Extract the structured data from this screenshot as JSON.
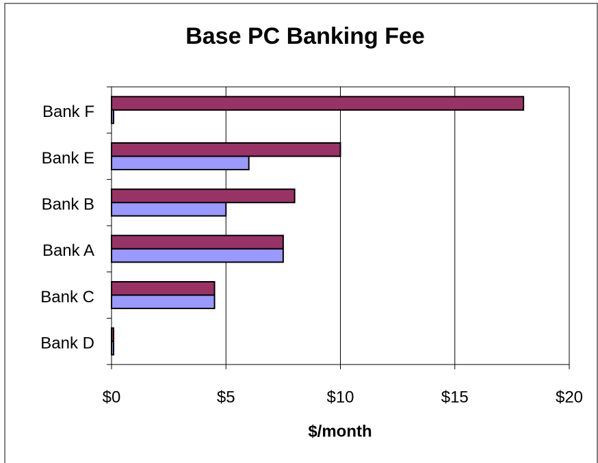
{
  "chart_data": {
    "type": "hbar",
    "title": "Base PC Banking Fee",
    "x_label": "$/month",
    "categories": [
      "Bank F",
      "Bank E",
      "Bank B",
      "Bank A",
      "Bank C",
      "Bank D"
    ],
    "series": [
      {
        "color": "#993366",
        "values": [
          18,
          10,
          8,
          7.5,
          4.5,
          0
        ]
      },
      {
        "color": "#9999ff",
        "values": [
          0,
          6,
          5,
          7.5,
          4.5,
          0
        ]
      }
    ],
    "xlim": [
      0,
      20
    ],
    "xticks": [
      {
        "value": 0,
        "label": "$0"
      },
      {
        "value": 5,
        "label": "$5"
      },
      {
        "value": 10,
        "label": "$10"
      },
      {
        "value": 15,
        "label": "$15"
      },
      {
        "value": 20,
        "label": "$20"
      }
    ],
    "grid": true
  }
}
